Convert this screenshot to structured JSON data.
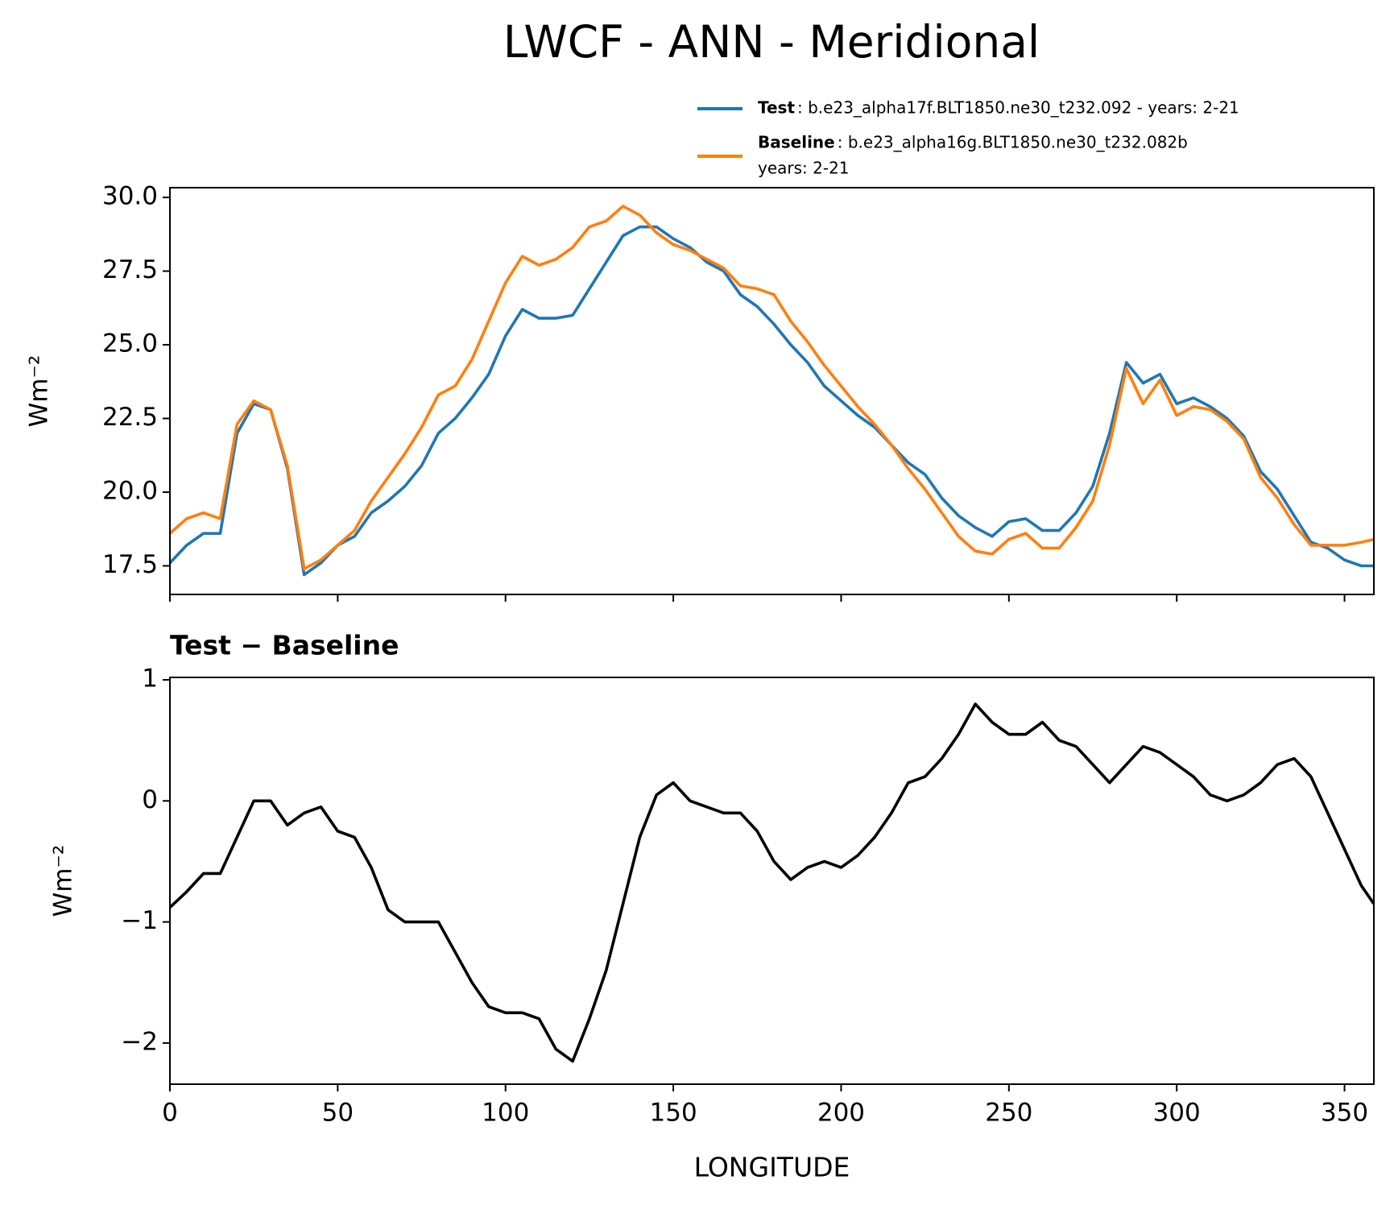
{
  "title": "LWCF - ANN - Meridional",
  "chart_data": [
    {
      "type": "line",
      "ylabel": "Wm⁻²",
      "x": [
        0,
        5,
        10,
        15,
        20,
        25,
        30,
        35,
        40,
        45,
        50,
        55,
        60,
        65,
        70,
        75,
        80,
        85,
        90,
        95,
        100,
        105,
        110,
        115,
        120,
        125,
        130,
        135,
        140,
        145,
        150,
        155,
        160,
        165,
        170,
        175,
        180,
        185,
        190,
        195,
        200,
        205,
        210,
        215,
        220,
        225,
        230,
        235,
        240,
        245,
        250,
        255,
        260,
        265,
        270,
        275,
        280,
        285,
        290,
        295,
        300,
        305,
        310,
        315,
        320,
        325,
        330,
        335,
        340,
        345,
        350,
        355,
        358.75
      ],
      "xlim": [
        0,
        358.75
      ],
      "xticks": [
        0,
        50,
        100,
        150,
        200,
        250,
        300,
        350
      ],
      "xtick_labels": false,
      "ylim": [
        16.53,
        30.33
      ],
      "yticks": [
        17.5,
        {
          "value": 20,
          "label": "20.0"
        },
        22.5,
        {
          "value": 25,
          "label": "25.0"
        },
        27.5,
        {
          "value": 30,
          "label": "30.0"
        }
      ],
      "legend": "above right",
      "series": [
        {
          "name": "Test",
          "description": [
            ": b.e23_alpha17f.BLT1850.ne30_t232.092 - years: 2-21"
          ],
          "color": "#1f77b4",
          "values": [
            17.6,
            18.2,
            18.6,
            18.6,
            22.0,
            23.0,
            22.8,
            20.8,
            17.2,
            17.6,
            18.2,
            18.5,
            19.3,
            19.7,
            20.2,
            20.9,
            22.0,
            22.5,
            23.2,
            24.0,
            25.3,
            26.2,
            25.9,
            25.9,
            26.0,
            26.9,
            27.8,
            28.7,
            29.0,
            29.0,
            28.6,
            28.3,
            27.8,
            27.5,
            26.7,
            26.3,
            25.7,
            25.0,
            24.4,
            23.6,
            23.1,
            22.6,
            22.2,
            21.6,
            21.0,
            20.6,
            19.8,
            19.2,
            18.8,
            18.5,
            19.0,
            19.1,
            18.7,
            18.7,
            19.3,
            20.2,
            22.0,
            24.4,
            23.7,
            24.0,
            23.0,
            23.2,
            22.9,
            22.5,
            21.9,
            20.7,
            20.1,
            19.2,
            18.3,
            18.1,
            17.7,
            17.5,
            17.5
          ]
        },
        {
          "name": "Baseline",
          "description": [
            ": b.e23_alpha16g.BLT1850.ne30_t232.082b",
            "years: 2-21"
          ],
          "color": "#ff7f0e",
          "values": [
            18.6,
            19.1,
            19.3,
            19.1,
            22.3,
            23.1,
            22.8,
            20.9,
            17.4,
            17.7,
            18.2,
            18.7,
            19.7,
            20.5,
            21.3,
            22.2,
            23.3,
            23.6,
            24.5,
            25.8,
            27.1,
            28.0,
            27.7,
            27.9,
            28.3,
            29.0,
            29.2,
            29.7,
            29.4,
            28.8,
            28.4,
            28.2,
            27.9,
            27.6,
            27.0,
            26.9,
            26.7,
            25.8,
            25.1,
            24.3,
            23.6,
            22.9,
            22.3,
            21.6,
            20.8,
            20.1,
            19.3,
            18.5,
            18.0,
            17.9,
            18.4,
            18.6,
            18.1,
            18.1,
            18.8,
            19.7,
            21.6,
            24.2,
            23.0,
            23.8,
            22.6,
            22.9,
            22.8,
            22.4,
            21.8,
            20.5,
            19.8,
            18.9,
            18.2,
            18.2,
            18.2,
            18.3,
            18.4
          ]
        }
      ]
    },
    {
      "type": "line",
      "title": "Test − Baseline",
      "xlabel": "LONGITUDE",
      "ylabel": "Wm⁻²",
      "x": [
        0,
        5,
        10,
        15,
        20,
        25,
        30,
        35,
        40,
        45,
        50,
        55,
        60,
        65,
        70,
        75,
        80,
        85,
        90,
        95,
        100,
        105,
        110,
        115,
        120,
        125,
        130,
        135,
        140,
        145,
        150,
        155,
        160,
        165,
        170,
        175,
        180,
        185,
        190,
        195,
        200,
        205,
        210,
        215,
        220,
        225,
        230,
        235,
        240,
        245,
        250,
        255,
        260,
        265,
        270,
        275,
        280,
        285,
        290,
        295,
        300,
        305,
        310,
        315,
        320,
        325,
        330,
        335,
        340,
        345,
        350,
        355,
        358.75
      ],
      "xlim": [
        0,
        358.75
      ],
      "xticks": [
        0,
        50,
        100,
        150,
        200,
        250,
        300,
        350
      ],
      "ylim": [
        -2.34,
        1.02
      ],
      "yticks": [
        {
          "value": -2,
          "label": "−2"
        },
        {
          "value": -1,
          "label": "−1"
        },
        0,
        1
      ],
      "series": [
        {
          "color": "#000000",
          "values": [
            -0.88,
            -0.75,
            -0.6,
            -0.6,
            -0.3,
            0.0,
            0.0,
            -0.2,
            -0.1,
            -0.05,
            -0.25,
            -0.3,
            -0.55,
            -0.9,
            -1.0,
            -1.0,
            -1.0,
            -1.25,
            -1.5,
            -1.7,
            -1.75,
            -1.75,
            -1.8,
            -2.05,
            -2.15,
            -1.8,
            -1.4,
            -0.85,
            -0.3,
            0.05,
            0.15,
            0.0,
            -0.05,
            -0.1,
            -0.1,
            -0.25,
            -0.5,
            -0.65,
            -0.55,
            -0.5,
            -0.55,
            -0.45,
            -0.3,
            -0.1,
            0.15,
            0.2,
            0.35,
            0.55,
            0.8,
            0.65,
            0.55,
            0.55,
            0.65,
            0.5,
            0.45,
            0.3,
            0.15,
            0.3,
            0.45,
            0.4,
            0.3,
            0.2,
            0.05,
            0.0,
            0.05,
            0.15,
            0.3,
            0.35,
            0.2,
            -0.1,
            -0.4,
            -0.7,
            -0.85
          ]
        }
      ]
    }
  ]
}
